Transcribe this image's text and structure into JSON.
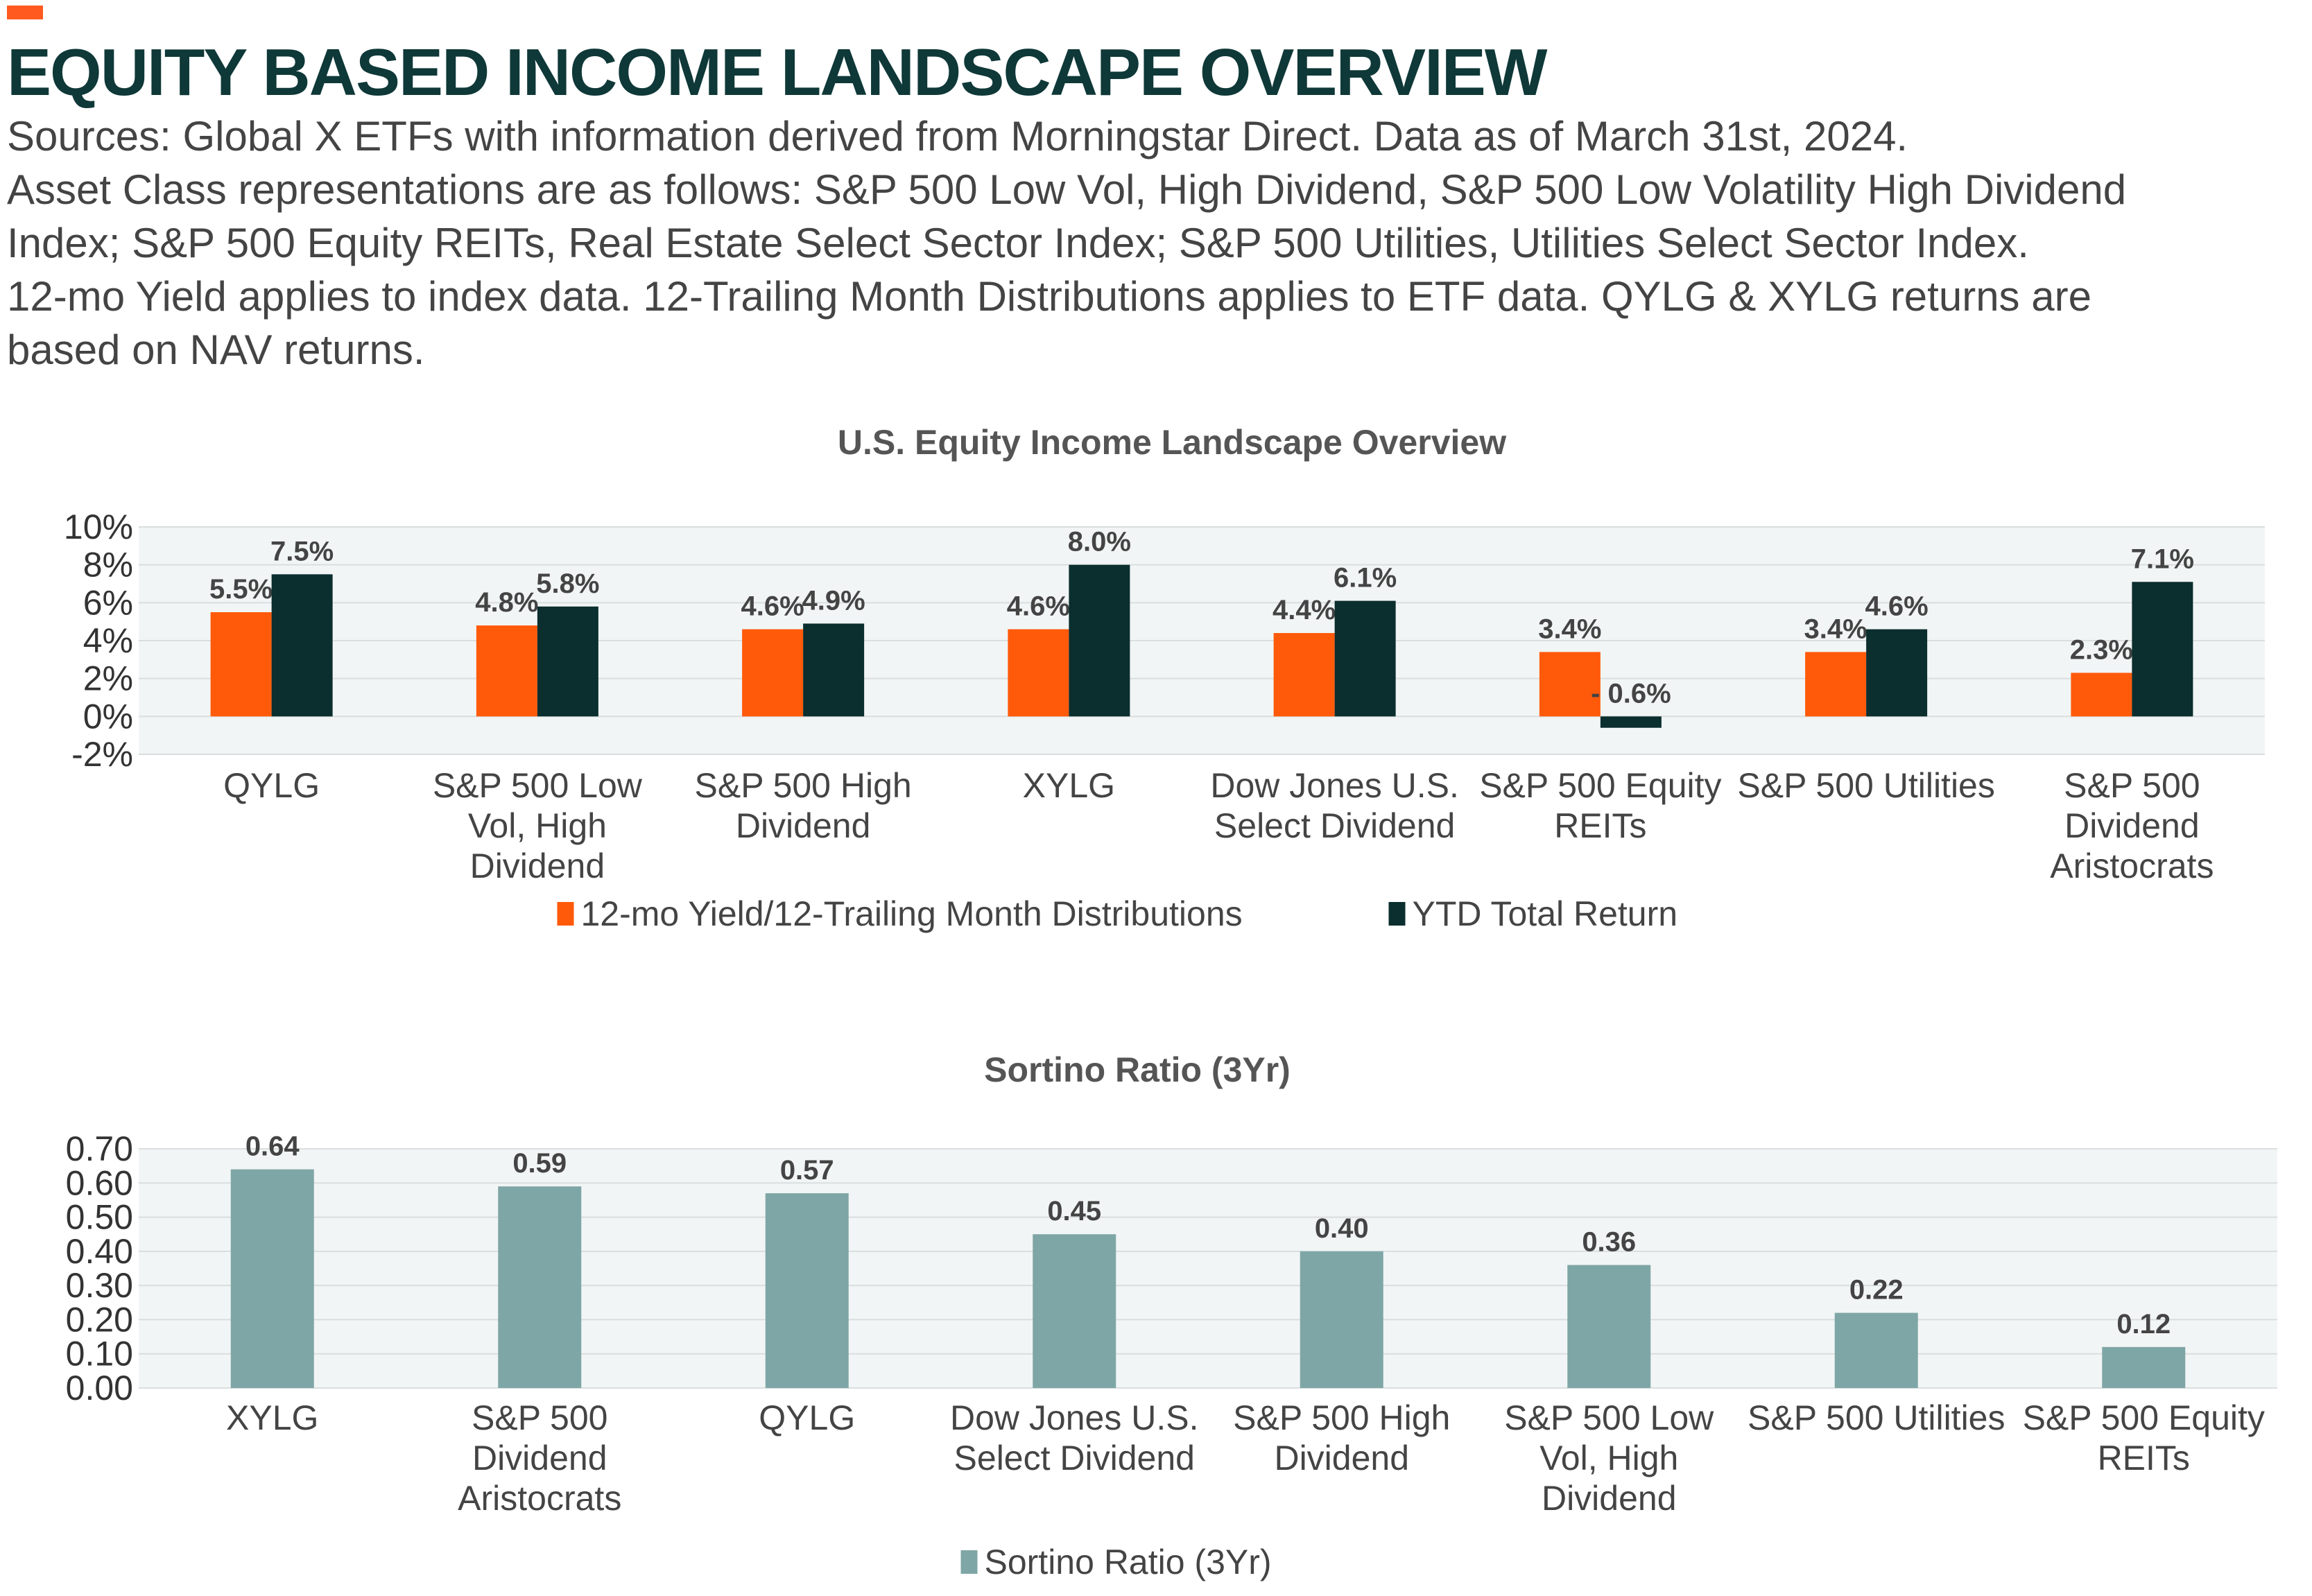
{
  "header": {
    "title": "EQUITY BASED INCOME LANDSCAPE OVERVIEW",
    "source_lines": [
      "Sources: Global X ETFs with information derived from Morningstar Direct. Data as of March 31st, 2024.",
      "Asset Class representations are as follows: S&P 500 Low Vol, High Dividend, S&P 500 Low Volatility High Dividend",
      "Index; S&P 500 Equity REITs, Real Estate Select Sector Index; S&P 500 Utilities, Utilities Select Sector Index.",
      "12-mo Yield applies to index data. 12-Trailing Month Distributions applies to ETF data. QYLG & XYLG returns are",
      "based on NAV returns."
    ]
  },
  "colors": {
    "accent": "#ff5a1f",
    "title": "#0f3838",
    "yield": "#ff5a0a",
    "ytd": "#0b2e2e",
    "sortino": "#7fa6a6",
    "plot_bg": "#f2f5f5",
    "grid": "#d9dede"
  },
  "chart_data": [
    {
      "type": "bar",
      "title": "U.S. Equity Income Landscape Overview",
      "categories": [
        [
          "QYLG"
        ],
        [
          "S&P 500 Low",
          "Vol, High",
          "Dividend"
        ],
        [
          "S&P 500 High",
          "Dividend"
        ],
        [
          "XYLG"
        ],
        [
          "Dow Jones U.S.",
          "Select Dividend"
        ],
        [
          "S&P 500 Equity",
          "REITs"
        ],
        [
          "S&P 500 Utilities"
        ],
        [
          "S&P 500",
          "Dividend",
          "Aristocrats"
        ]
      ],
      "series": [
        {
          "name": "12-mo Yield/12-Trailing Month Distributions",
          "color_key": "yield",
          "values": [
            5.5,
            4.8,
            4.6,
            4.6,
            4.4,
            3.4,
            3.4,
            2.3
          ],
          "labels": [
            "5.5%",
            "4.8%",
            "4.6%",
            "4.6%",
            "4.4%",
            "3.4%",
            "3.4%",
            "2.3%"
          ]
        },
        {
          "name": "YTD Total Return",
          "color_key": "ytd",
          "values": [
            7.5,
            5.8,
            4.9,
            8.0,
            6.1,
            -0.6,
            4.6,
            7.1
          ],
          "labels": [
            "7.5%",
            "5.8%",
            "4.9%",
            "8.0%",
            "6.1%",
            "- 0.6%",
            "4.6%",
            "7.1%"
          ]
        }
      ],
      "ylim": [
        -2,
        10
      ],
      "yticks": [
        "10%",
        "8%",
        "6%",
        "4%",
        "2%",
        "0%",
        "-2%"
      ],
      "ytick_values": [
        10,
        8,
        6,
        4,
        2,
        0,
        -2
      ],
      "grid": true,
      "legend": "bottom"
    },
    {
      "type": "bar",
      "title": "Sortino Ratio (3Yr)",
      "categories": [
        [
          "XYLG"
        ],
        [
          "S&P 500",
          "Dividend",
          "Aristocrats"
        ],
        [
          "QYLG"
        ],
        [
          "Dow Jones U.S.",
          "Select Dividend"
        ],
        [
          "S&P 500 High",
          "Dividend"
        ],
        [
          "S&P 500 Low",
          "Vol, High",
          "Dividend"
        ],
        [
          "S&P 500 Utilities"
        ],
        [
          "S&P 500 Equity",
          "REITs"
        ]
      ],
      "series": [
        {
          "name": "Sortino Ratio (3Yr)",
          "color_key": "sortino",
          "values": [
            0.64,
            0.59,
            0.57,
            0.45,
            0.4,
            0.36,
            0.22,
            0.12
          ],
          "labels": [
            "0.64",
            "0.59",
            "0.57",
            "0.45",
            "0.40",
            "0.36",
            "0.22",
            "0.12"
          ]
        }
      ],
      "ylim": [
        0,
        0.7
      ],
      "yticks": [
        "0.70",
        "0.60",
        "0.50",
        "0.40",
        "0.30",
        "0.20",
        "0.10",
        "0.00"
      ],
      "ytick_values": [
        0.7,
        0.6,
        0.5,
        0.4,
        0.3,
        0.2,
        0.1,
        0.0
      ],
      "grid": true,
      "legend": "bottom"
    }
  ]
}
